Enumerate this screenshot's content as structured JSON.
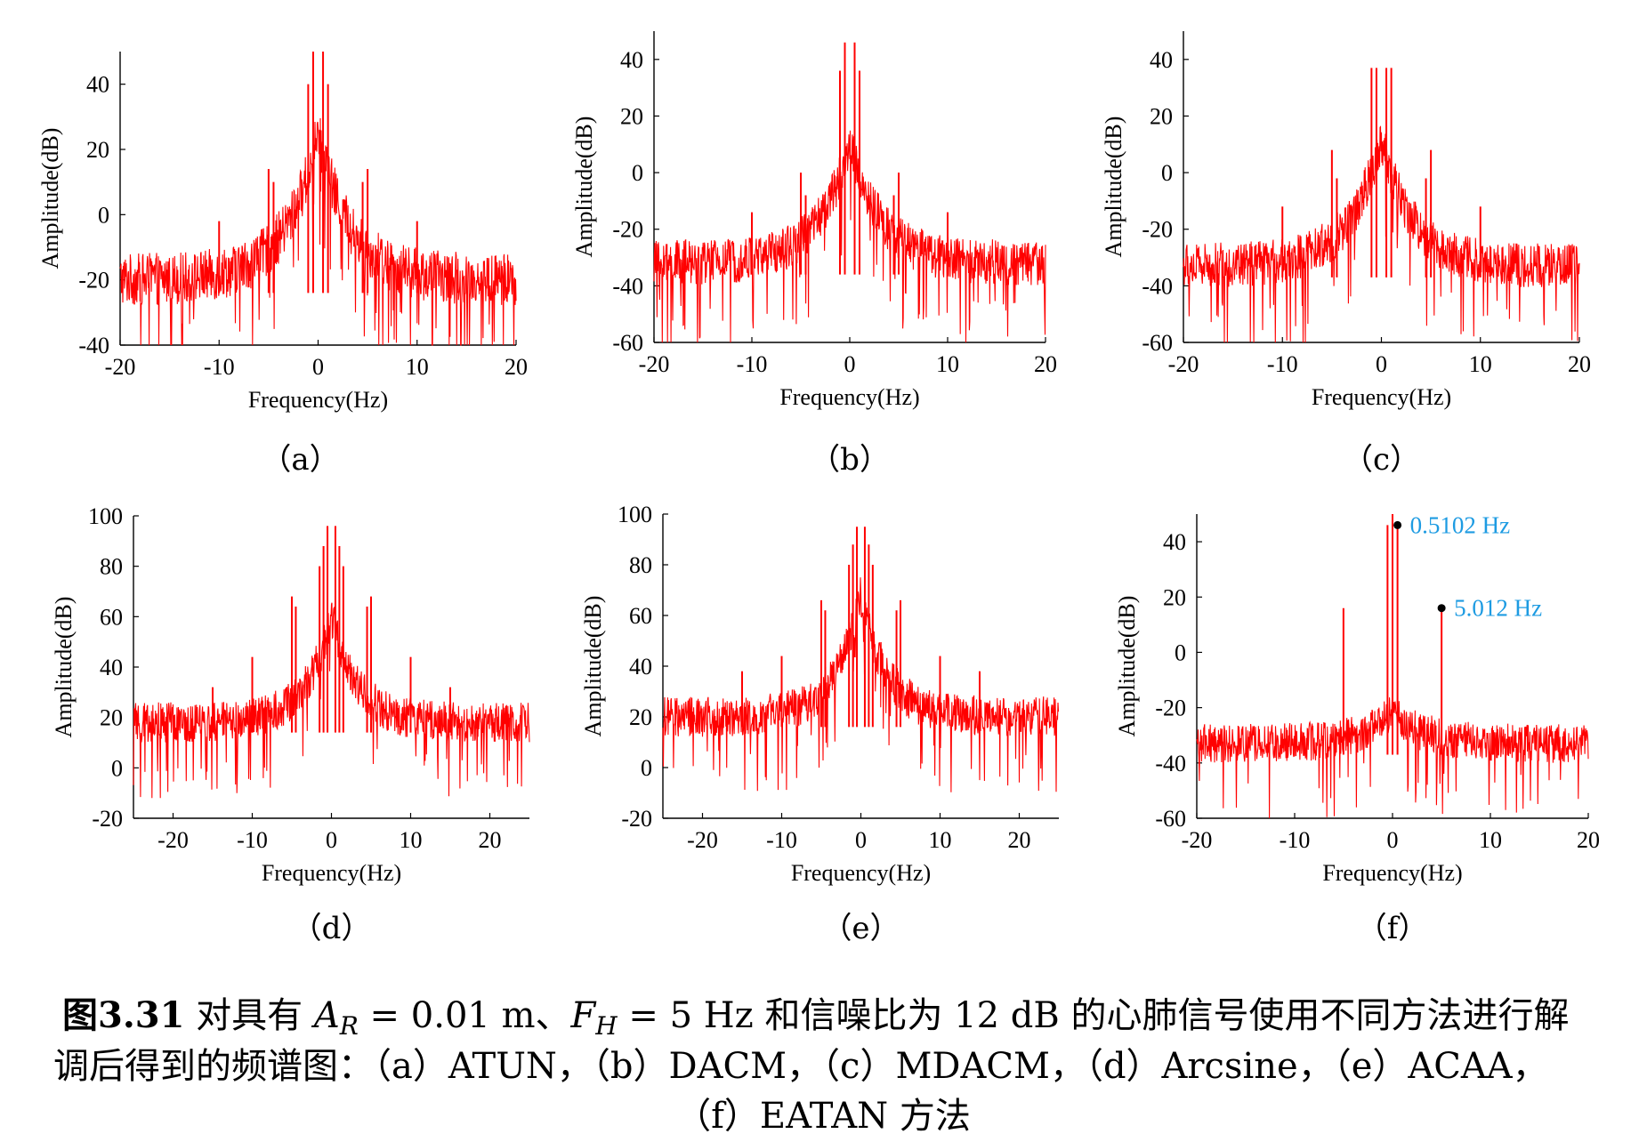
{
  "figure": {
    "caption": {
      "fig_num": "图3.31",
      "line1_prefix": " 对具有 ",
      "ar_var": "A",
      "ar_sub": "R",
      "ar_value": " = 0.01 m、",
      "fh_var": "F",
      "fh_sub": "H",
      "line1_suffix": " = 5 Hz 和信噪比为 12 dB 的心肺信号使用不同方法进行解",
      "line2": "调后得到的频谱图：（a）ATUN，（b）DACM，（c）MDACM，（d）Arcsine，（e）ACAA，",
      "line3": "（f）EATAN 方法"
    }
  },
  "chart_data": [
    {
      "id": "a",
      "panel_label": "（a）",
      "type": "line",
      "xlabel": "Frequency(Hz)",
      "ylabel": "Amplitude(dB)",
      "xlim": [
        -20,
        20
      ],
      "ylim": [
        -40,
        50
      ],
      "xticks": [
        -20,
        -10,
        0,
        10,
        20
      ],
      "yticks": [
        -40,
        -20,
        0,
        20,
        40
      ],
      "series_color": "#ff0000",
      "noise_floor_db": -20,
      "noise_spread_db": 16,
      "center_peak_db": 25,
      "peaks": [
        {
          "x": -0.5,
          "y": 50
        },
        {
          "x": 0.5,
          "y": 50
        },
        {
          "x": -1,
          "y": 40
        },
        {
          "x": 1,
          "y": 40
        },
        {
          "x": -5,
          "y": 14
        },
        {
          "x": 5,
          "y": 14
        },
        {
          "x": -4.5,
          "y": 10
        },
        {
          "x": 4.5,
          "y": 10
        },
        {
          "x": -10,
          "y": -2
        },
        {
          "x": 10,
          "y": -2
        }
      ]
    },
    {
      "id": "b",
      "panel_label": "（b）",
      "type": "line",
      "xlabel": "Frequency(Hz)",
      "ylabel": "Amplitude(dB)",
      "xlim": [
        -20,
        20
      ],
      "ylim": [
        -60,
        50
      ],
      "xticks": [
        -20,
        -10,
        0,
        10,
        20
      ],
      "yticks": [
        -60,
        -40,
        -20,
        0,
        20,
        40
      ],
      "series_color": "#ff0000",
      "noise_floor_db": -32,
      "noise_spread_db": 16,
      "center_peak_db": 10,
      "peaks": [
        {
          "x": -0.5,
          "y": 46
        },
        {
          "x": 0.5,
          "y": 46
        },
        {
          "x": -1,
          "y": 36
        },
        {
          "x": 1,
          "y": 36
        },
        {
          "x": -5,
          "y": 0
        },
        {
          "x": 5,
          "y": 0
        },
        {
          "x": -4.5,
          "y": -8
        },
        {
          "x": 4.5,
          "y": -8
        },
        {
          "x": -10,
          "y": -14
        },
        {
          "x": 10,
          "y": -14
        }
      ]
    },
    {
      "id": "c",
      "panel_label": "（c）",
      "type": "line",
      "xlabel": "Frequency(Hz)",
      "ylabel": "Amplitude(dB)",
      "xlim": [
        -20,
        20
      ],
      "ylim": [
        -60,
        50
      ],
      "xticks": [
        -20,
        -10,
        0,
        10,
        20
      ],
      "yticks": [
        -60,
        -40,
        -20,
        0,
        20,
        40
      ],
      "series_color": "#ff0000",
      "noise_floor_db": -33,
      "noise_spread_db": 16,
      "center_peak_db": 12,
      "peaks": [
        {
          "x": -0.5,
          "y": 37
        },
        {
          "x": 0.5,
          "y": 37
        },
        {
          "x": -1,
          "y": 37
        },
        {
          "x": 1,
          "y": 37
        },
        {
          "x": -5,
          "y": 8
        },
        {
          "x": 5,
          "y": 8
        },
        {
          "x": -4.5,
          "y": -2
        },
        {
          "x": 4.5,
          "y": -2
        },
        {
          "x": -10,
          "y": -12
        },
        {
          "x": 10,
          "y": -12
        }
      ]
    },
    {
      "id": "d",
      "panel_label": "（d）",
      "type": "line",
      "xlabel": "Frequency(Hz)",
      "ylabel": "Amplitude(dB)",
      "xlim": [
        -25,
        25
      ],
      "ylim": [
        -20,
        100
      ],
      "xticks": [
        -20,
        -10,
        0,
        10,
        20
      ],
      "yticks": [
        -20,
        0,
        20,
        40,
        60,
        80,
        100
      ],
      "series_color": "#ff0000",
      "noise_floor_db": 18,
      "noise_spread_db": 16,
      "center_peak_db": 60,
      "peaks": [
        {
          "x": -0.5,
          "y": 96
        },
        {
          "x": 0.5,
          "y": 96
        },
        {
          "x": -1,
          "y": 88
        },
        {
          "x": 1,
          "y": 88
        },
        {
          "x": -1.5,
          "y": 80
        },
        {
          "x": 1.5,
          "y": 80
        },
        {
          "x": -5,
          "y": 68
        },
        {
          "x": 5,
          "y": 68
        },
        {
          "x": -4.5,
          "y": 64
        },
        {
          "x": 4.5,
          "y": 64
        },
        {
          "x": -10,
          "y": 44
        },
        {
          "x": 10,
          "y": 44
        },
        {
          "x": -15,
          "y": 32
        },
        {
          "x": 15,
          "y": 32
        }
      ]
    },
    {
      "id": "e",
      "panel_label": "（e）",
      "type": "line",
      "xlabel": "Frequency(Hz)",
      "ylabel": "Amplitude(dB)",
      "xlim": [
        -25,
        25
      ],
      "ylim": [
        -20,
        100
      ],
      "xticks": [
        -20,
        -10,
        0,
        10,
        20
      ],
      "yticks": [
        -20,
        0,
        20,
        40,
        60,
        80,
        100
      ],
      "series_color": "#ff0000",
      "noise_floor_db": 20,
      "noise_spread_db": 16,
      "center_peak_db": 68,
      "peaks": [
        {
          "x": -0.5,
          "y": 95
        },
        {
          "x": 0.5,
          "y": 95
        },
        {
          "x": -1,
          "y": 88
        },
        {
          "x": 1,
          "y": 88
        },
        {
          "x": -1.5,
          "y": 80
        },
        {
          "x": 1.5,
          "y": 80
        },
        {
          "x": -5,
          "y": 66
        },
        {
          "x": 5,
          "y": 66
        },
        {
          "x": -4.5,
          "y": 62
        },
        {
          "x": 4.5,
          "y": 62
        },
        {
          "x": -10,
          "y": 44
        },
        {
          "x": 10,
          "y": 44
        },
        {
          "x": -15,
          "y": 38
        },
        {
          "x": 15,
          "y": 38
        }
      ]
    },
    {
      "id": "f",
      "panel_label": "（f）",
      "type": "line",
      "xlabel": "Frequency(Hz)",
      "ylabel": "Amplitude(dB)",
      "xlim": [
        -20,
        20
      ],
      "ylim": [
        -60,
        50
      ],
      "xticks": [
        -20,
        -10,
        0,
        10,
        20
      ],
      "yticks": [
        -60,
        -40,
        -20,
        0,
        20,
        40
      ],
      "series_color": "#ff0000",
      "noise_floor_db": -33,
      "noise_spread_db": 14,
      "center_peak_db": -22,
      "peaks": [
        {
          "x": -0.5102,
          "y": 46
        },
        {
          "x": 0.5102,
          "y": 46
        },
        {
          "x": 0,
          "y": 50
        },
        {
          "x": -5.012,
          "y": 16
        },
        {
          "x": 5.012,
          "y": 16
        }
      ],
      "annotations": [
        {
          "x": 0.5102,
          "y": 46,
          "text": "0.5102 Hz",
          "color": "#1d9be2"
        },
        {
          "x": 5.012,
          "y": 16,
          "text": "5.012 Hz",
          "color": "#1d9be2"
        }
      ]
    }
  ]
}
